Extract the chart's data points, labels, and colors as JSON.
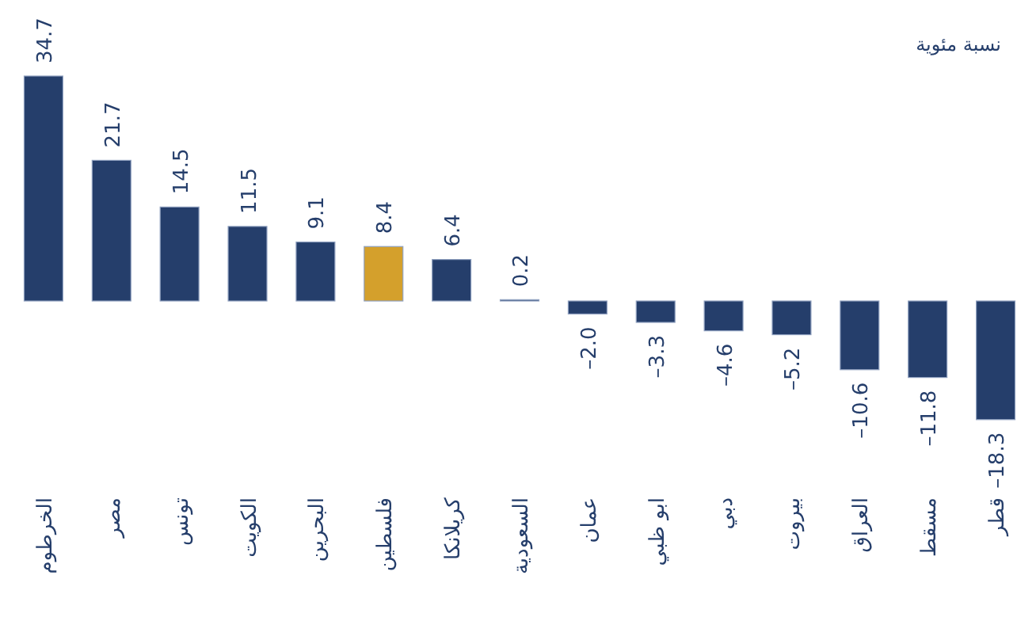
{
  "chart_data": {
    "type": "bar",
    "categories": [
      "الخرطوم",
      "مصر",
      "تونس",
      "الكويت",
      "البحرين",
      "فلسطين",
      "كريلانكا",
      "السعودية",
      "عمان",
      "ابو ظبي",
      "دبي",
      "بيروت",
      "العراق",
      "مسقط",
      "قطر"
    ],
    "values": [
      34.7,
      21.7,
      14.5,
      11.5,
      9.1,
      8.4,
      6.4,
      0.2,
      -2.0,
      -3.3,
      -4.6,
      -5.2,
      -10.6,
      -11.8,
      -18.3
    ],
    "colors": [
      "#253e6b",
      "#253e6b",
      "#253e6b",
      "#253e6b",
      "#253e6b",
      "#d4a02c",
      "#253e6b",
      "#253e6b",
      "#253e6b",
      "#253e6b",
      "#253e6b",
      "#253e6b",
      "#253e6b",
      "#253e6b",
      "#253e6b"
    ],
    "value_labels": [
      "34.7",
      "21.7",
      "14.5",
      "11.5",
      "9.1",
      "8.4",
      "6.4",
      "0.2",
      "–2.0",
      "–3.3",
      "–4.6",
      "–5.2",
      "–10.6",
      "–11.8",
      "–18.3"
    ],
    "annotations": [
      "نسبة مئوية"
    ]
  }
}
